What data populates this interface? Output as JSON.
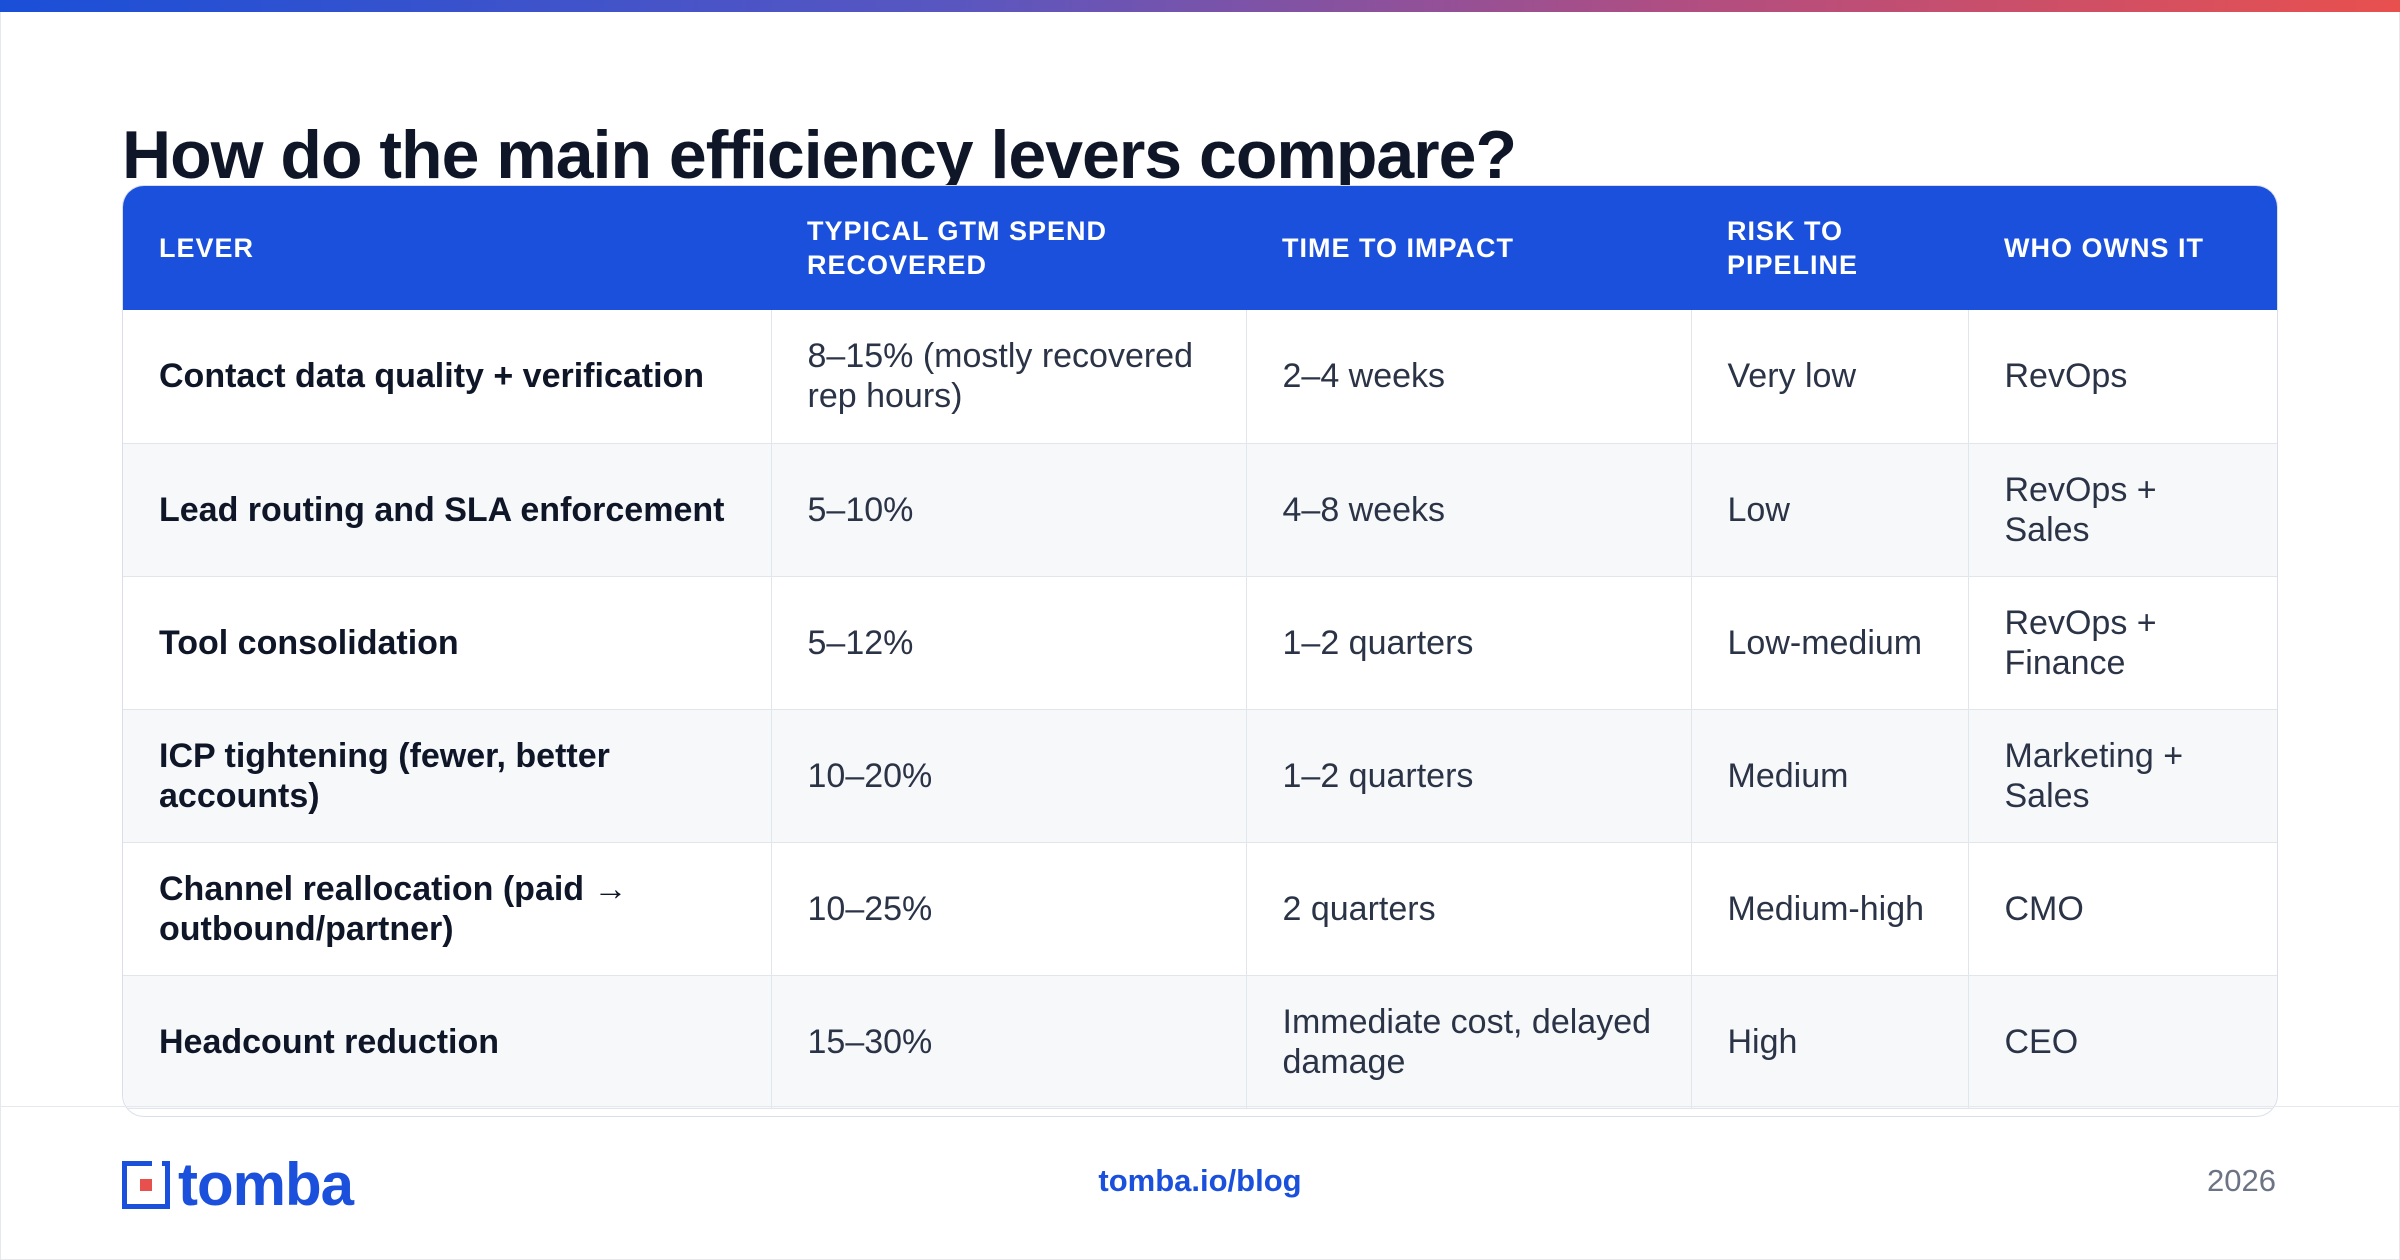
{
  "title": "How do the main efficiency levers compare?",
  "table": {
    "headers": [
      "LEVER",
      "TYPICAL GTM SPEND RECOVERED",
      "TIME TO IMPACT",
      "RISK TO PIPELINE",
      "WHO OWNS IT"
    ],
    "rows": [
      [
        "Contact data quality + verification",
        "8–15% (mostly recovered rep hours)",
        "2–4 weeks",
        "Very low",
        "RevOps"
      ],
      [
        "Lead routing and SLA enforcement",
        "5–10%",
        "4–8 weeks",
        "Low",
        "RevOps + Sales"
      ],
      [
        "Tool consolidation",
        "5–12%",
        "1–2 quarters",
        "Low-medium",
        "RevOps + Finance"
      ],
      [
        "ICP tightening (fewer, better accounts)",
        "10–20%",
        "1–2 quarters",
        "Medium",
        "Marketing + Sales"
      ],
      [
        "Channel reallocation (paid → outbound/partner)",
        "10–25%",
        "2 quarters",
        "Medium-high",
        "CMO"
      ],
      [
        "Headcount reduction",
        "15–30%",
        "Immediate cost, delayed damage",
        "High",
        "CEO"
      ]
    ]
  },
  "footer": {
    "logo_text": "tomba",
    "url": "tomba.io/blog",
    "year": "2026"
  },
  "colors": {
    "accent": "#1a50db",
    "title": "#0e1628",
    "gradient": [
      "#1a4fd8",
      "#e8504e"
    ]
  },
  "icons": {
    "logo": "tomba-logo-mark"
  }
}
